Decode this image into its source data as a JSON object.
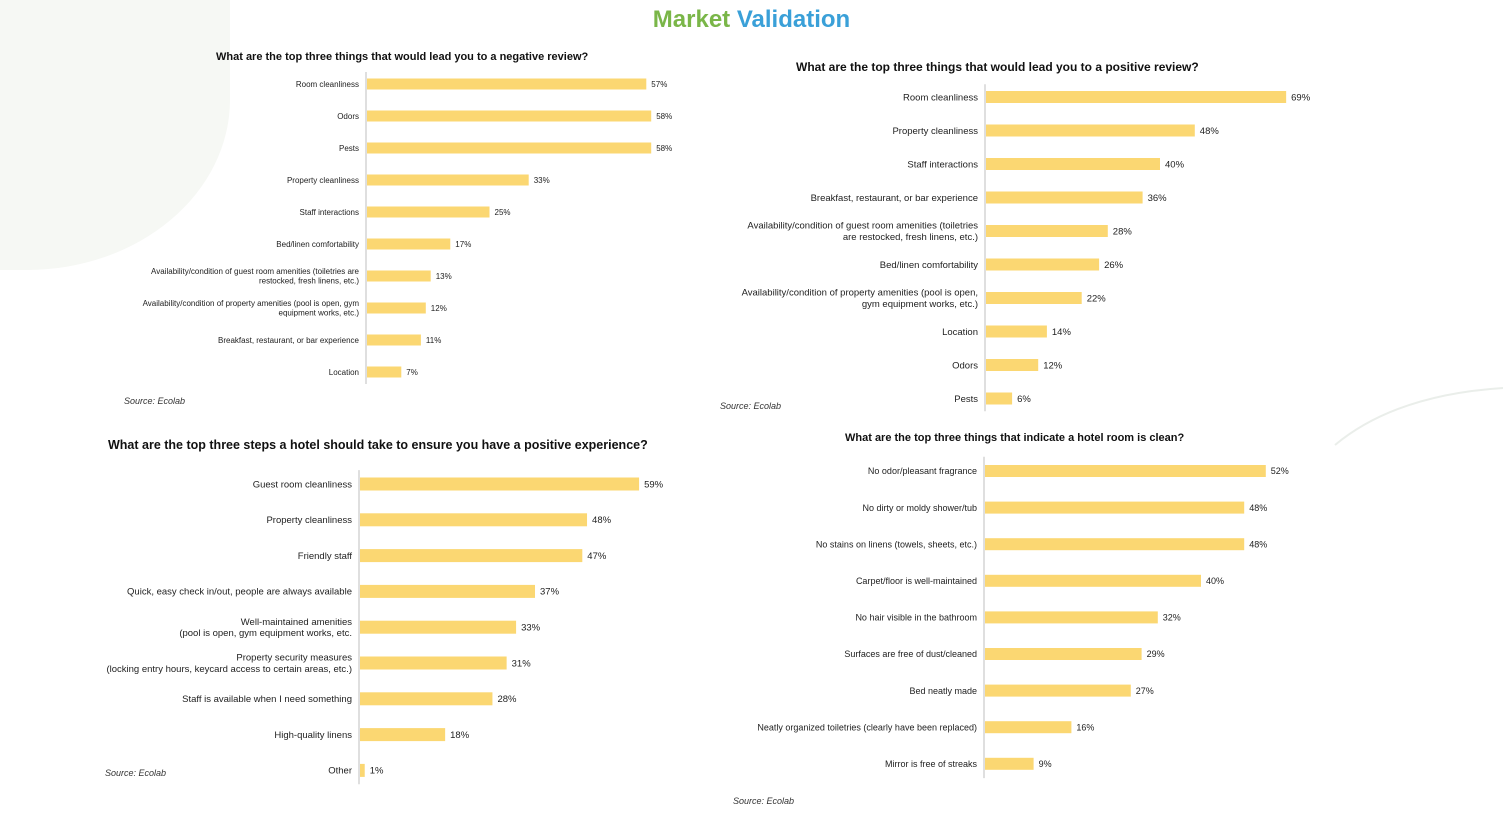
{
  "page": {
    "title_part1": "Market",
    "title_part2": "Validation",
    "bar_color": "#fbd772",
    "title_color_1": "#7ab648",
    "title_color_2": "#3aa0d8"
  },
  "chart_data": [
    {
      "type": "bar",
      "orientation": "horizontal",
      "title": "What are the top three things that would lead you to a negative review?",
      "source": "Source: Ecolab",
      "categories": [
        "Room cleanliness",
        "Odors",
        "Pests",
        "Property cleanliness",
        "Staff interactions",
        "Bed/linen comfortability",
        "Availability/condition of guest room amenities (toiletries are\nrestocked, fresh linens, etc.)",
        "Availability/condition of property amenities (pool is open, gym\nequipment works, etc.)",
        "Breakfast, restaurant, or bar experience",
        "Location"
      ],
      "values": [
        57,
        58,
        58,
        33,
        25,
        17,
        13,
        12,
        11,
        7
      ],
      "labels": [
        "57%",
        "58%",
        "58%",
        "33%",
        "25%",
        "17%",
        "13%",
        "12%",
        "11%",
        "7%"
      ],
      "unit": "%"
    },
    {
      "type": "bar",
      "orientation": "horizontal",
      "title": "What are the top three things that would lead you to a positive review?",
      "source": "Source: Ecolab",
      "categories": [
        "Room cleanliness",
        "Property cleanliness",
        "Staff interactions",
        "Breakfast, restaurant, or bar experience",
        "Availability/condition of guest room amenities (toiletries\nare restocked, fresh linens, etc.)",
        "Bed/linen comfortability",
        "Availability/condition of property amenities (pool is open,\ngym equipment works, etc.)",
        "Location",
        "Odors",
        "Pests"
      ],
      "values": [
        69,
        48,
        40,
        36,
        28,
        26,
        22,
        14,
        12,
        6
      ],
      "labels": [
        "69%",
        "48%",
        "40%",
        "36%",
        "28%",
        "26%",
        "22%",
        "14%",
        "12%",
        "6%"
      ],
      "unit": "%"
    },
    {
      "type": "bar",
      "orientation": "horizontal",
      "title": "What are the top three steps a hotel should take to ensure you have a positive experience?",
      "source": "Source: Ecolab",
      "categories": [
        "Guest room cleanliness",
        "Property cleanliness",
        "Friendly staff",
        "Quick, easy check in/out, people are always available",
        "Well-maintained amenities\n(pool is open, gym equipment works, etc.",
        "Property security measures\n(locking entry hours, keycard access to certain areas, etc.)",
        "Staff is available when I need something",
        "High-quality linens",
        "Other"
      ],
      "values": [
        59,
        48,
        47,
        37,
        33,
        31,
        28,
        18,
        1
      ],
      "labels": [
        "59%",
        "48%",
        "47%",
        "37%",
        "33%",
        "31%",
        "28%",
        "18%",
        "1%"
      ],
      "unit": "%"
    },
    {
      "type": "bar",
      "orientation": "horizontal",
      "title": "What are the top three things that indicate a hotel room is clean?",
      "source": "Source: Ecolab",
      "categories": [
        "No odor/pleasant fragrance",
        "No dirty or moldy shower/tub",
        "No stains on linens (towels, sheets, etc.)",
        "Carpet/floor is well-maintained",
        "No hair visible in the bathroom",
        "Surfaces are free of dust/cleaned",
        "Bed neatly made",
        "Neatly organized toiletries (clearly have been replaced)",
        "Mirror is free of streaks"
      ],
      "values": [
        52,
        48,
        48,
        40,
        32,
        29,
        27,
        16,
        9
      ],
      "labels": [
        "52%",
        "48%",
        "48%",
        "40%",
        "32%",
        "29%",
        "27%",
        "16%",
        "9%"
      ],
      "unit": "%"
    }
  ]
}
